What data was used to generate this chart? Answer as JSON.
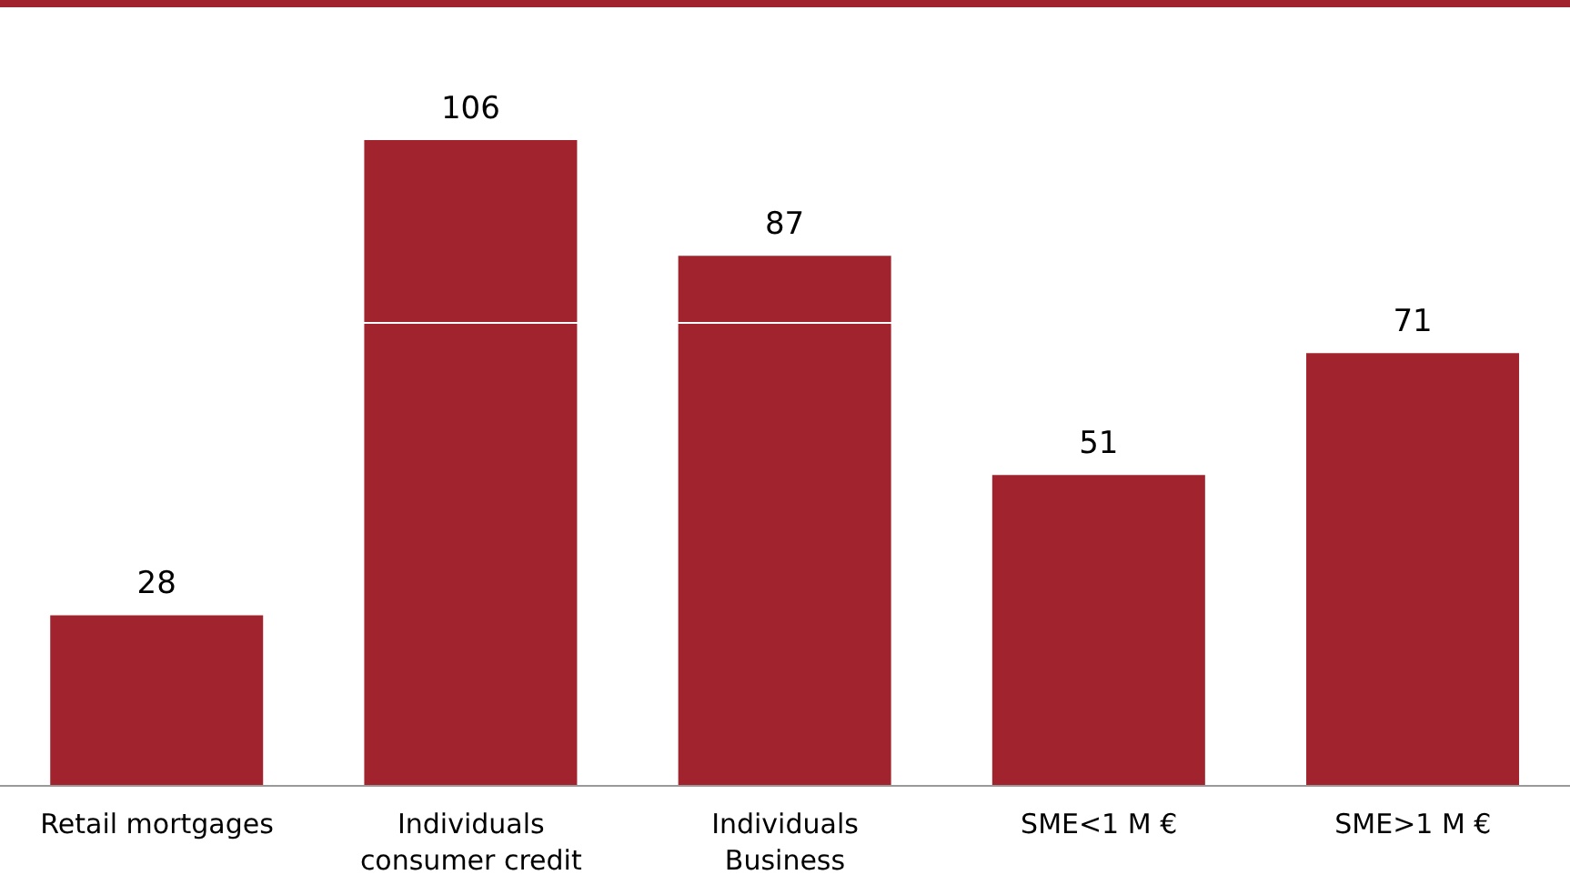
{
  "chart_data": {
    "type": "bar",
    "categories": [
      "Retail mortgages",
      "Individuals consumer credit",
      "Individuals Business",
      "SME<1 M €",
      "SME>1 M €"
    ],
    "values": [
      28,
      106,
      87,
      51,
      71
    ],
    "color": "#a0232e",
    "data_labels": true,
    "ref_lines": [
      {
        "axis": "y",
        "value": 76,
        "color": "#ffffff"
      }
    ]
  }
}
